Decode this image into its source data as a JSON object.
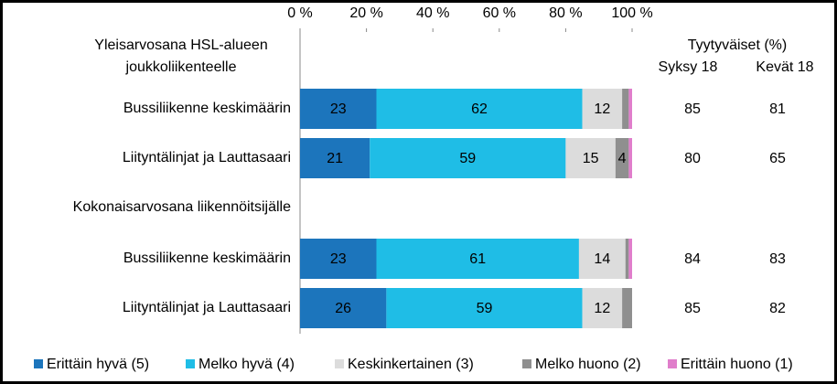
{
  "chart_data": {
    "type": "stacked-bar-horizontal",
    "categories": [
      "Yleisarvosana HSL-alueen joukkoliikenteelle",
      "Bussiliikenne keskimäärin",
      "Liityntälinjat ja Lauttasaari",
      "Kokonaisarvosana liikennöitsijälle",
      "Bussiliikenne keskimäärin",
      "Liityntälinjat ja Lauttasaari"
    ],
    "series": [
      {
        "name": "Erittäin hyvä (5)",
        "color": "#1c75bc",
        "values": [
          null,
          23,
          21,
          null,
          23,
          26
        ]
      },
      {
        "name": "Melko hyvä (4)",
        "color": "#1fbde6",
        "values": [
          null,
          62,
          59,
          null,
          61,
          59
        ]
      },
      {
        "name": "Keskinkertainen (3)",
        "color": "#dcdcdc",
        "values": [
          null,
          12,
          15,
          null,
          14,
          12
        ]
      },
      {
        "name": "Melko huono (2)",
        "color": "#8f8f8f",
        "values": [
          null,
          2,
          4,
          null,
          1,
          3
        ],
        "value_labels": [
          null,
          null,
          "4",
          null,
          null,
          null
        ]
      },
      {
        "name": "Erittäin huono (1)",
        "color": "#e07ecb",
        "values": [
          null,
          1,
          1,
          null,
          1,
          0
        ],
        "value_labels": [
          null,
          null,
          null,
          null,
          null,
          null
        ]
      }
    ],
    "xlim": [
      0,
      100
    ],
    "xticks": [
      {
        "value": 0,
        "label": "0 %"
      },
      {
        "value": 20,
        "label": "20 %"
      },
      {
        "value": 40,
        "label": "40 %"
      },
      {
        "value": 60,
        "label": "60 %"
      },
      {
        "value": 80,
        "label": "80 %"
      },
      {
        "value": 100,
        "label": "100 %"
      }
    ],
    "legend": "bottom",
    "table": {
      "title": "Tyytyväiset (%)",
      "columns": [
        "Syksy 18",
        "Kevät 18"
      ],
      "rows": [
        null,
        [
          85,
          81
        ],
        [
          80,
          65
        ],
        null,
        [
          84,
          83
        ],
        [
          85,
          82
        ]
      ]
    }
  }
}
